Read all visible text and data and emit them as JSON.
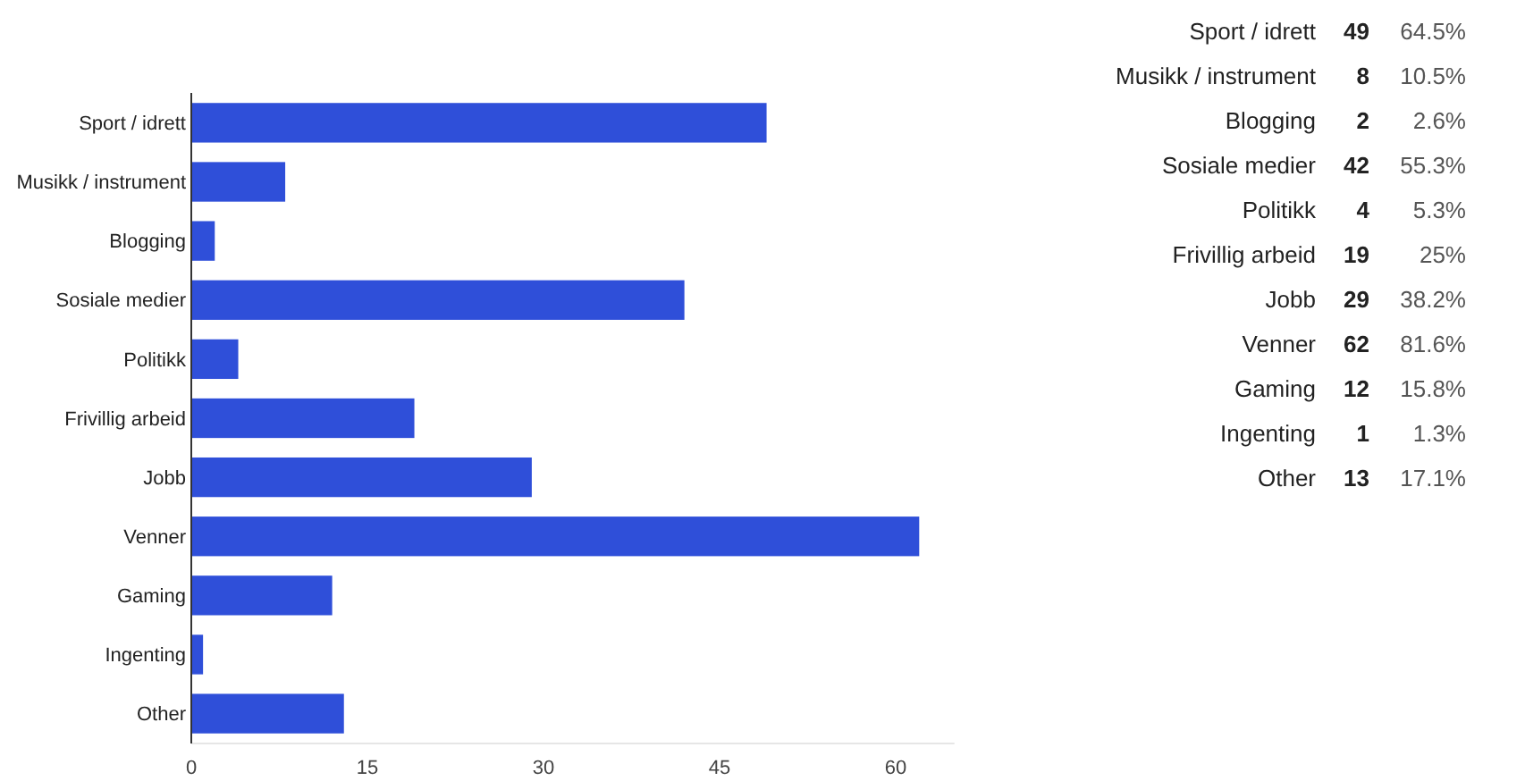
{
  "chart_data": [
    {
      "type": "bar",
      "orientation": "horizontal",
      "categories": [
        "Sport / idrett",
        "Musikk / instrument",
        "Blogging",
        "Sosiale medier",
        "Politikk",
        "Frivillig arbeid",
        "Jobb",
        "Venner",
        "Gaming",
        "Ingenting",
        "Other"
      ],
      "values": [
        49,
        8,
        2,
        42,
        4,
        19,
        29,
        62,
        12,
        1,
        13
      ],
      "color": "#2f4fd9",
      "xlim": [
        0,
        65
      ],
      "xticks": [
        0,
        15,
        30,
        45,
        60
      ]
    },
    {
      "type": "other",
      "categories": [
        "Sport / idrett",
        "Musikk / instrument",
        "Blogging",
        "Sosiale medier",
        "Politikk",
        "Frivillig arbeid",
        "Jobb",
        "Venner",
        "Gaming",
        "Ingenting",
        "Other"
      ],
      "series": [
        {
          "values": [
            49,
            8,
            2,
            42,
            4,
            19,
            29,
            62,
            12,
            1,
            13
          ]
        },
        {
          "values": [
            64.5,
            10.5,
            2.6,
            55.3,
            5.3,
            25,
            38.2,
            81.6,
            15.8,
            1.3,
            17.1
          ],
          "value_labels": [
            "64.5%",
            "10.5%",
            "2.6%",
            "55.3%",
            "5.3%",
            "25%",
            "38.2%",
            "81.6%",
            "15.8%",
            "1.3%",
            "17.1%"
          ]
        }
      ],
      "data_labels": true
    }
  ]
}
